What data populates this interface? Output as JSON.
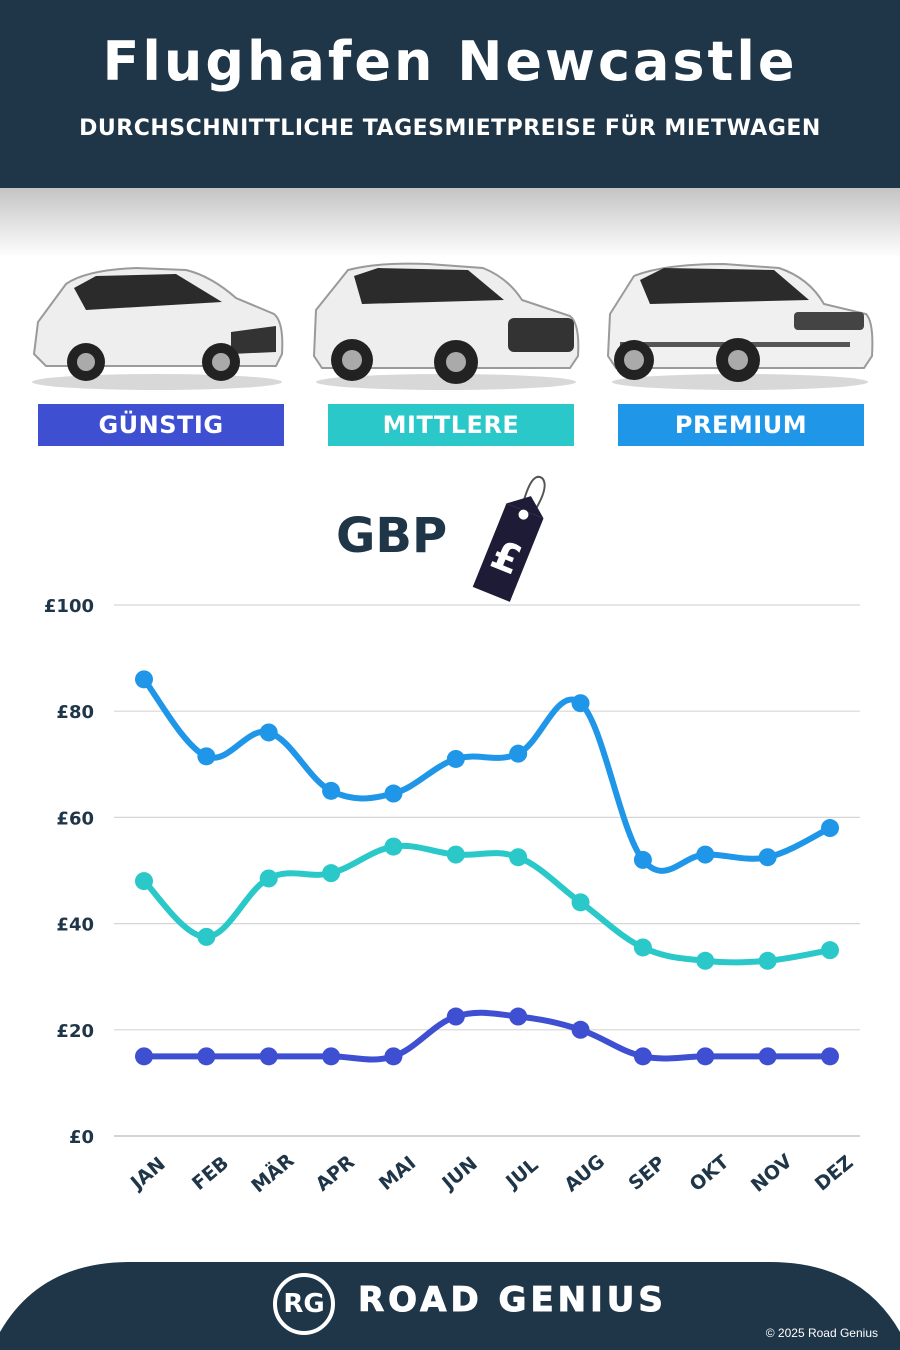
{
  "header": {
    "title": "Flughafen Newcastle",
    "subtitle": "DURCHSCHNITTLICHE TAGESMIETPREISE FÜR MIETWAGEN"
  },
  "categories": [
    {
      "label": "GÜNSTIG",
      "color": "#3f4fd1"
    },
    {
      "label": "MITTLERE",
      "color": "#2ac8c8"
    },
    {
      "label": "PREMIUM",
      "color": "#1f96e8"
    }
  ],
  "currency": {
    "label": "GBP",
    "tag_symbol": "£",
    "icon": "price-tag-icon"
  },
  "chart_data": {
    "type": "line",
    "categories": [
      "JAN",
      "FEB",
      "MÄR",
      "APR",
      "MAI",
      "JUN",
      "JUL",
      "AUG",
      "SEP",
      "OKT",
      "NOV",
      "DEZ"
    ],
    "series": [
      {
        "name": "PREMIUM",
        "color": "#1f96e8",
        "values": [
          86,
          71.5,
          76,
          65,
          64.5,
          71,
          72,
          81.5,
          52,
          53,
          52.5,
          58
        ]
      },
      {
        "name": "MITTLERE",
        "color": "#2ac8c8",
        "values": [
          48,
          37.5,
          48.5,
          49.5,
          54.5,
          53,
          52.5,
          44,
          35.5,
          33,
          33,
          35
        ]
      },
      {
        "name": "GÜNSTIG",
        "color": "#3f4fd1",
        "values": [
          15,
          15,
          15,
          15,
          15,
          22.5,
          22.5,
          20,
          15,
          15,
          15,
          15
        ]
      }
    ],
    "yticks": [
      "£0",
      "£20",
      "£40",
      "£60",
      "£80",
      "£100"
    ],
    "ytick_values": [
      0,
      20,
      40,
      60,
      80,
      100
    ],
    "ylim": [
      0,
      100
    ],
    "grid": true
  },
  "footer": {
    "logo_mark": "RG",
    "brand": "ROAD GENIUS",
    "copyright": "© 2025 Road Genius"
  }
}
